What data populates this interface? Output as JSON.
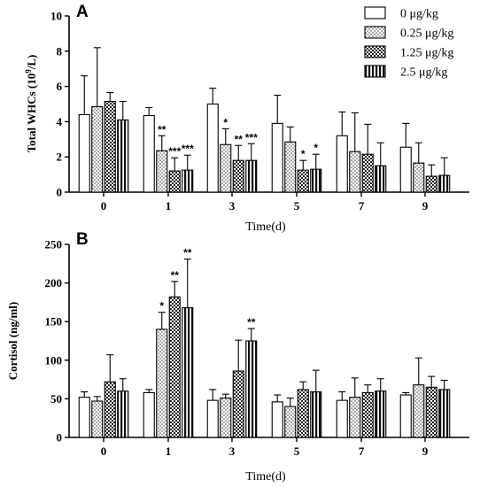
{
  "chart_data": [
    {
      "type": "bar",
      "panel_label": "A",
      "title": "",
      "xlabel": "Time(d)",
      "ylabel": "Total WHCs (10",
      "ylabel_sup": "9",
      "ylabel_tail": "/L)",
      "ylim": [
        0,
        10
      ],
      "yticks": [
        0,
        2,
        4,
        6,
        8,
        10
      ],
      "categories": [
        "0",
        "1",
        "3",
        "5",
        "7",
        "9"
      ],
      "series": [
        {
          "name": "0 μg/kg",
          "pattern": "white",
          "values": [
            4.4,
            4.35,
            5.0,
            3.9,
            3.2,
            2.55
          ],
          "errors": [
            2.2,
            0.45,
            0.9,
            1.6,
            1.35,
            1.35
          ],
          "stars": [
            "",
            "",
            "",
            "",
            "",
            ""
          ]
        },
        {
          "name": "0.25 μg/kg",
          "pattern": "dots",
          "values": [
            4.85,
            2.35,
            2.7,
            2.85,
            2.3,
            1.65
          ],
          "errors": [
            3.35,
            0.85,
            0.9,
            0.85,
            2.2,
            1.15
          ],
          "stars": [
            "",
            "**",
            "*",
            "",
            "",
            ""
          ]
        },
        {
          "name": "1.25 μg/kg",
          "pattern": "checker",
          "values": [
            5.15,
            1.2,
            1.8,
            1.25,
            2.15,
            0.9
          ],
          "errors": [
            0.5,
            0.75,
            0.85,
            0.55,
            1.7,
            0.65
          ],
          "stars": [
            "",
            "***",
            "**",
            "*",
            "",
            ""
          ]
        },
        {
          "name": "2.5 μg/kg",
          "pattern": "stripes",
          "values": [
            4.1,
            1.25,
            1.8,
            1.3,
            1.5,
            0.95
          ],
          "errors": [
            1.05,
            0.85,
            0.95,
            0.85,
            1.3,
            1.0
          ],
          "stars": [
            "",
            "***",
            "***",
            "*",
            "",
            ""
          ]
        }
      ],
      "legend_position": "top-right"
    },
    {
      "type": "bar",
      "panel_label": "B",
      "title": "",
      "xlabel": "Time(d)",
      "ylabel": "Cortisol (ng/ml)",
      "ylim": [
        0,
        250
      ],
      "yticks": [
        0,
        50,
        100,
        150,
        200,
        250
      ],
      "categories": [
        "0",
        "1",
        "3",
        "5",
        "7",
        "9"
      ],
      "series": [
        {
          "name": "0 μg/kg",
          "pattern": "white",
          "values": [
            52,
            58,
            48,
            46,
            48,
            55
          ],
          "errors": [
            7,
            4,
            14,
            9,
            11,
            3
          ],
          "stars": [
            "",
            "",
            "",
            "",
            "",
            ""
          ]
        },
        {
          "name": "0.25 μg/kg",
          "pattern": "dots",
          "values": [
            47,
            140,
            51,
            40,
            52,
            68
          ],
          "errors": [
            6,
            22,
            5,
            11,
            25,
            35
          ],
          "stars": [
            "",
            "*",
            "",
            "",
            "",
            ""
          ]
        },
        {
          "name": "1.25 μg/kg",
          "pattern": "checker",
          "values": [
            72,
            182,
            86,
            62,
            58,
            65
          ],
          "errors": [
            35,
            20,
            40,
            10,
            10,
            14
          ],
          "stars": [
            "",
            "**",
            "",
            "",
            "",
            ""
          ]
        },
        {
          "name": "2.5 μg/kg",
          "pattern": "stripes",
          "values": [
            60,
            168,
            125,
            59,
            60,
            62
          ],
          "errors": [
            16,
            63,
            16,
            28,
            16,
            12
          ],
          "stars": [
            "",
            "**",
            "**",
            "",
            "",
            ""
          ]
        }
      ]
    }
  ]
}
